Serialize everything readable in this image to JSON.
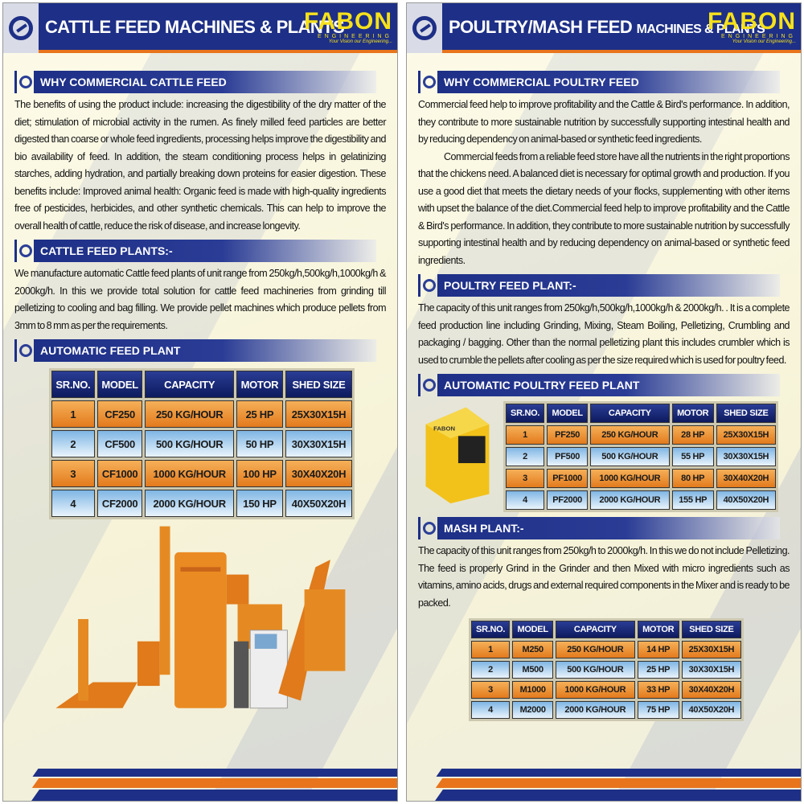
{
  "brand": {
    "name": "FABON",
    "sub": "ENGINEERING",
    "tagline": "Your Vision our Engineering..."
  },
  "left": {
    "title": "CATTLE FEED MACHINES & PLANTS",
    "s1": {
      "heading": "WHY COMMERCIAL CATTLE FEED",
      "text": "The benefits of using the product include: increasing the digestibility of the dry matter of the diet; stimulation of microbial activity in the rumen. As finely milled feed particles are better digested than coarse or whole feed ingredients, processing helps improve the digestibility and bio availability of feed. In addition, the steam conditioning process helps in gelatinizing starches, adding hydration, and partially breaking down proteins for easier digestion. These benefits include: Improved animal health: Organic feed is made with high-quality ingredients free of pesticides, herbicides, and other synthetic chemicals. This can help to improve the overall health of cattle, reduce the risk of disease, and increase longevity."
    },
    "s2": {
      "heading": "CATTLE FEED PLANTS:-",
      "text": "We manufacture automatic Cattle feed plants of unit range from 250kg/h,500kg/h,1000kg/h & 2000kg/h. In this we provide total solution for cattle feed machineries from grinding till pelletizing to cooling and bag filling. We provide pellet machines which produce pellets from 3mm to 8 mm as per the requirements."
    },
    "s3": {
      "heading": "AUTOMATIC FEED PLANT"
    },
    "table": {
      "headers": [
        "SR.NO.",
        "MODEL",
        "CAPACITY",
        "MOTOR",
        "SHED SIZE"
      ],
      "rows": [
        [
          "1",
          "CF250",
          "250 KG/HOUR",
          "25 HP",
          "25X30X15H"
        ],
        [
          "2",
          "CF500",
          "500 KG/HOUR",
          "50 HP",
          "30X30X15H"
        ],
        [
          "3",
          "CF1000",
          "1000 KG/HOUR",
          "100 HP",
          "30X40X20H"
        ],
        [
          "4",
          "CF2000",
          "2000 KG/HOUR",
          "150 HP",
          "40X50X20H"
        ]
      ]
    }
  },
  "right": {
    "title_big": "POULTRY/MASH FEED",
    "title_small": "MACHINES & PLANTS",
    "s1": {
      "heading": "WHY COMMERCIAL POULTRY FEED",
      "p1": "Commercial feed help to improve profitability and the Cattle & Bird's performance. In addition, they contribute to more sustainable nutrition by successfully supporting intestinal health and by reducing dependency on animal-based or synthetic feed ingredients.",
      "p2": "Commercial feeds from a reliable feed store have all the nutrients in the right proportions that the chickens need. A balanced diet is necessary for optimal growth and production. If you use a good diet that meets the dietary needs of your flocks, supplementing with other items with upset the balance of the diet.Commercial feed help to improve profitability and the Cattle & Bird's performance. In addition, they contribute to more sustainable nutrition by successfully supporting intestinal health and by reducing dependency on animal-based or synthetic feed ingredients."
    },
    "s2": {
      "heading": "POULTRY FEED PLANT:-",
      "text": "The capacity of this unit ranges from 250kg/h,500kg/h,1000kg/h & 2000kg/h. . It is a complete feed production line including Grinding, Mixing, Steam Boiling, Pelletizing, Crumbling and packaging / bagging. Other than the normal pelletizing plant this includes crumbler which is used to crumble the pellets after cooling as per the size required which is used for poultry feed."
    },
    "s3": {
      "heading": "AUTOMATIC POULTRY FEED PLANT"
    },
    "table1": {
      "headers": [
        "SR.NO.",
        "MODEL",
        "CAPACITY",
        "MOTOR",
        "SHED SIZE"
      ],
      "rows": [
        [
          "1",
          "PF250",
          "250 KG/HOUR",
          "28 HP",
          "25X30X15H"
        ],
        [
          "2",
          "PF500",
          "500 KG/HOUR",
          "55 HP",
          "30X30X15H"
        ],
        [
          "3",
          "PF1000",
          "1000 KG/HOUR",
          "80 HP",
          "30X40X20H"
        ],
        [
          "4",
          "PF2000",
          "2000 KG/HOUR",
          "155 HP",
          "40X50X20H"
        ]
      ]
    },
    "s4": {
      "heading": "MASH PLANT:-",
      "text": "The capacity of this unit ranges from 250kg/h to 2000kg/h. In this we do not include Pelletizing. The feed is properly Grind in the Grinder and then Mixed with micro ingredients such as vitamins, amino acids, drugs and external required components in the Mixer and is ready to be packed."
    },
    "table2": {
      "headers": [
        "SR.NO.",
        "MODEL",
        "CAPACITY",
        "MOTOR",
        "SHED SIZE"
      ],
      "rows": [
        [
          "1",
          "M250",
          "250 KG/HOUR",
          "14 HP",
          "25X30X15H"
        ],
        [
          "2",
          "M500",
          "500 KG/HOUR",
          "25 HP",
          "30X30X15H"
        ],
        [
          "3",
          "M1000",
          "1000 KG/HOUR",
          "33 HP",
          "30X40X20H"
        ],
        [
          "4",
          "M2000",
          "2000 KG/HOUR",
          "75 HP",
          "40X50X20H"
        ]
      ]
    }
  },
  "colors": {
    "navy": "#1d2f86",
    "orange": "#e8741c",
    "brand_yellow": "#f6e11a",
    "row_orange": "#f0a048",
    "row_blue": "#a9d0ef"
  },
  "icons": [
    "gear-logo-icon"
  ]
}
